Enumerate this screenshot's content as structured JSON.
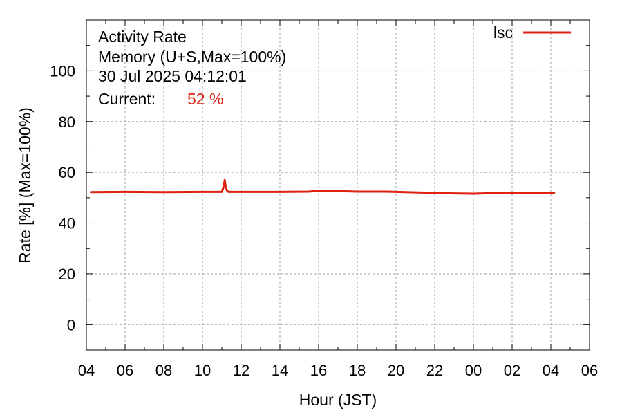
{
  "header": {
    "title": "Activity Rate",
    "subtitle": "Memory (U+S,Max=100%)",
    "timestamp": "30 Jul 2025 04:12:01",
    "current_label": "Current:",
    "current_value": "52 %"
  },
  "colors": {
    "series": "#dd2211",
    "grid": "#a0a0a0",
    "axis": "#000000"
  },
  "chart_data": {
    "type": "line",
    "title": "Activity Rate",
    "subtitle": "Memory (U+S,Max=100%)",
    "xlabel": "Hour (JST)",
    "ylabel": "Rate [%]  (Max=100%)",
    "xlim": [
      0,
      26
    ],
    "ylim": [
      -10,
      120
    ],
    "xticks": [
      "04",
      "06",
      "08",
      "10",
      "12",
      "14",
      "16",
      "18",
      "20",
      "22",
      "00",
      "02",
      "04",
      "06"
    ],
    "yticks": [
      0,
      20,
      40,
      60,
      80,
      100
    ],
    "grid": true,
    "legend_position": "top-right",
    "series": [
      {
        "name": "lsc",
        "x": [
          0.2,
          2.0,
          4.0,
          6.0,
          7.0,
          7.1,
          7.15,
          7.2,
          7.3,
          7.4,
          8.0,
          10.0,
          11.5,
          12.0,
          13.0,
          14.0,
          15.5,
          16.0,
          17.0,
          18.0,
          19.0,
          20.0,
          21.0,
          22.0,
          23.0,
          24.0,
          24.2
        ],
        "values": [
          52.2,
          52.3,
          52.2,
          52.3,
          52.3,
          54.5,
          57.0,
          54.0,
          52.4,
          52.3,
          52.3,
          52.3,
          52.4,
          52.8,
          52.6,
          52.4,
          52.4,
          52.3,
          52.1,
          51.9,
          51.7,
          51.6,
          51.8,
          52.0,
          51.9,
          52.0,
          52.0
        ]
      }
    ]
  }
}
